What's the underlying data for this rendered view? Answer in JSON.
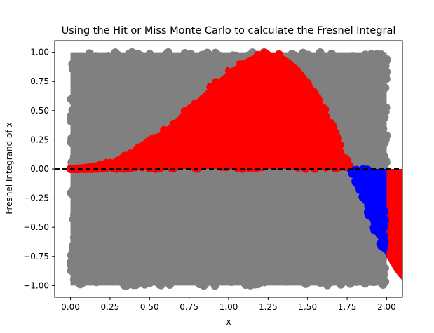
{
  "chart_data": {
    "type": "scatter",
    "title": "Using the Hit or Miss Monte Carlo to calculate the Fresnel Integral",
    "xlabel": "x",
    "ylabel": "Fresnel Integrand of x",
    "xlim": [
      -0.1,
      2.1
    ],
    "ylim": [
      -1.1,
      1.1
    ],
    "x_ticks": [
      0.0,
      0.25,
      0.5,
      0.75,
      1.0,
      1.25,
      1.5,
      1.75,
      2.0
    ],
    "x_tick_labels": [
      "0.00",
      "0.25",
      "0.50",
      "0.75",
      "1.00",
      "1.25",
      "1.50",
      "1.75",
      "2.00"
    ],
    "y_ticks": [
      -1.0,
      -0.75,
      -0.5,
      -0.25,
      0.0,
      0.25,
      0.5,
      0.75,
      1.0
    ],
    "y_tick_labels": [
      "−1.00",
      "−0.75",
      "−0.50",
      "−0.25",
      "0.00",
      "0.25",
      "0.50",
      "0.75",
      "1.00"
    ],
    "grid": false,
    "curve": {
      "function": "sin(x^2)",
      "x_range": [
        0.0,
        2.0
      ]
    },
    "sample_region": {
      "x": [
        0.0,
        2.0
      ],
      "y": [
        -1.0,
        1.0
      ]
    },
    "reference_line": {
      "y": 0.0,
      "style": "dashed",
      "color": "#000000"
    },
    "series": [
      {
        "key": "miss",
        "color": "#808080",
        "description_region": "outside area between curve and y=0"
      },
      {
        "key": "hit_positive",
        "color": "#ff0000",
        "description_region": "0 <= y <= sin(x^2) where curve positive"
      },
      {
        "key": "hit_negative",
        "color": "#0000ff",
        "description_region": "sin(x^2) <= y <= 0 where curve negative"
      }
    ]
  }
}
